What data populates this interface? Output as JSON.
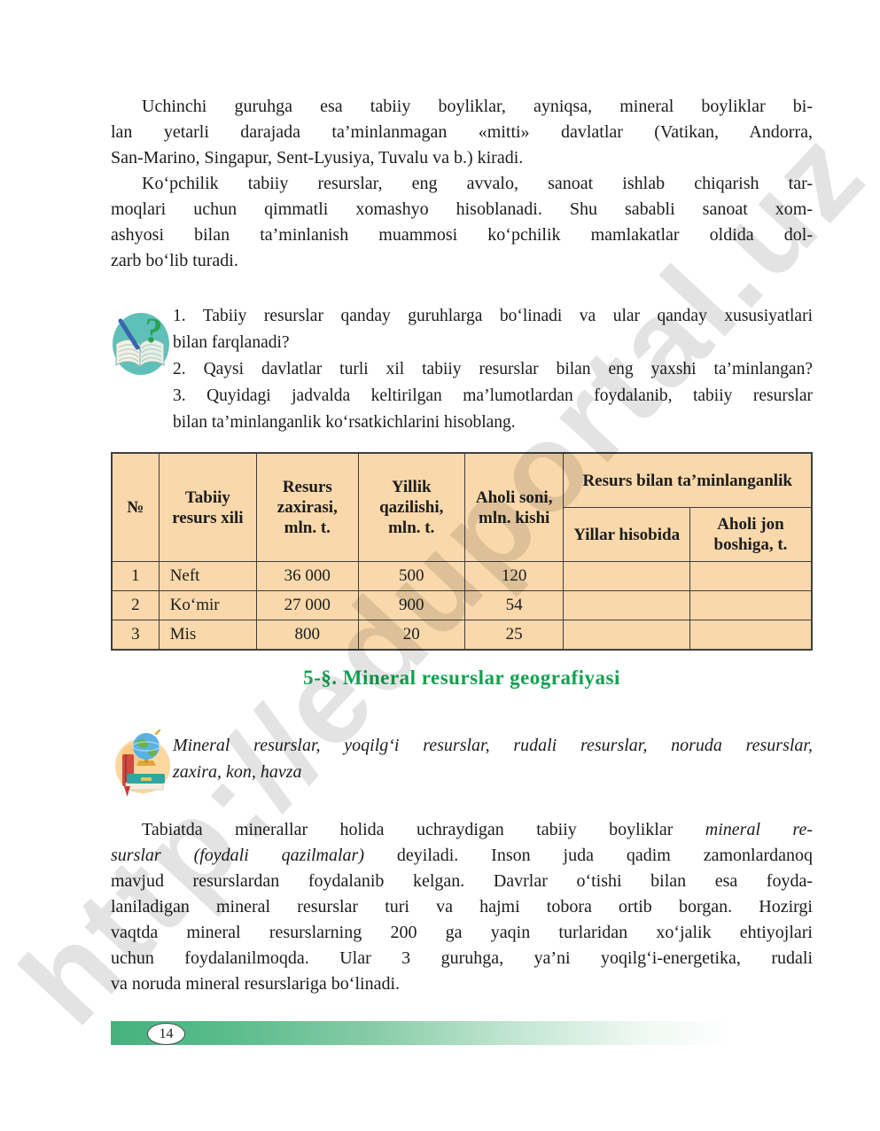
{
  "watermark": {
    "text": "http://eduportal.uz"
  },
  "content": {
    "paragraph_1": {
      "lines": [
        {
          "t": "Uchinchi guruhga esa tabiiy boyliklar, ayniqsa, mineral boyliklar bi-",
          "fill": true
        },
        {
          "t": "lan yetarli darajada ta’minlanmagan «mitti» davlatlar (Vatikan, Andorra,",
          "fill": true
        },
        {
          "t": "San-Marino, Singapur, Sent-Lyusiya, Tuvalu va b.) kiradi.",
          "fill": false
        }
      ]
    },
    "paragraph_2": {
      "lines": [
        {
          "t": "Ko‘pchilik tabiiy resurslar, eng avvalo, sanoat ishlab chiqarish tar-",
          "fill": true
        },
        {
          "t": "moqlari uchun qimmatli xomashyo hisoblanadi. Shu sababli sanoat xom-",
          "fill": true
        },
        {
          "t": "ashyosi bilan ta’minlanish muammosi ko‘pchilik mamlakatlar oldida dol-",
          "fill": true
        },
        {
          "t": "zarb bo‘lib turadi.",
          "fill": false
        }
      ]
    },
    "questions": {
      "icon": "book-question-pen-icon",
      "items": [
        {
          "lines": [
            {
              "t": "1. Tabiiy resurslar qanday guruhlarga bo‘linadi va ular qanday xususiyatlari",
              "fill": true
            },
            {
              "t": "bilan farqlanadi?",
              "fill": false
            }
          ]
        },
        {
          "lines": [
            {
              "t": "2. Qaysi davlatlar turli xil tabiiy resurslar bilan eng yaxshi ta’minlangan?",
              "fill": true
            }
          ]
        },
        {
          "lines": [
            {
              "t": "3. Quyidagi jadvalda keltirilgan ma’lumotlardan foydalanib, tabiiy resurslar",
              "fill": true
            },
            {
              "t": "bilan ta’minlanganlik ko‘rsatkichlarini hisoblang.",
              "fill": false
            }
          ]
        }
      ]
    },
    "table": {
      "headers": {
        "num": "№",
        "kind": "Tabiiy resurs xili",
        "reserve": "Resurs zaxirasi, mln. t.",
        "annual": "Yillik qazilishi, mln. t.",
        "population": "Aholi soni, mln. kishi",
        "supply": "Resurs bilan ta’minlanganlik",
        "years": "Yillar hisobida",
        "percapita": "Aholi jon boshiga, t."
      },
      "rows": [
        {
          "num": "1",
          "kind": "Neft",
          "reserve": "36 000",
          "annual": "500",
          "population": "120",
          "years": "",
          "percapita": ""
        },
        {
          "num": "2",
          "kind": "Ko‘mir",
          "reserve": "27 000",
          "annual": "900",
          "population": "54",
          "years": "",
          "percapita": ""
        },
        {
          "num": "3",
          "kind": "Mis",
          "reserve": "800",
          "annual": "20",
          "population": "25",
          "years": "",
          "percapita": ""
        }
      ]
    },
    "section": {
      "heading": "5-§. Mineral resurslar geografiyasi"
    },
    "vocabulary": {
      "icon": "globe-on-books-icon",
      "lines": [
        {
          "t": "Mineral resurslar, yoqilg‘i resurslar, rudali resurslar, noruda resurslar,",
          "fill": true
        },
        {
          "t": "zaxira, kon, havza",
          "fill": false
        }
      ]
    },
    "paragraph_3": {
      "lines": [
        {
          "seg": [
            {
              "t": "Tabiatda minerallar holida uchraydigan tabiiy boyliklar "
            },
            {
              "t": "mineral re-",
              "i": true
            }
          ],
          "fill": true
        },
        {
          "seg": [
            {
              "t": "surslar (foydali qazilmalar)",
              "i": true
            },
            {
              "t": " deyiladi. Inson juda qadim zamonlardanoq"
            }
          ],
          "fill": true
        },
        {
          "t": "mavjud resurslardan foydalanib kelgan. Davrlar o‘tishi bilan esa foyda-",
          "fill": true
        },
        {
          "t": "laniladigan mineral resurslar turi va hajmi tobora ortib borgan. Hozirgi",
          "fill": true
        },
        {
          "t": "vaqtda mineral resurslarning 200 ga yaqin turlaridan xo‘jalik ehtiyojlari",
          "fill": true
        },
        {
          "t": "uchun foydalanilmoqda. Ular 3 guruhga, ya’ni yoqilg‘i-energetika, rudali",
          "fill": true
        },
        {
          "t": "va noruda mineral resurslariga bo‘linadi.",
          "fill": false
        }
      ]
    }
  },
  "footer": {
    "page_number": "14"
  },
  "colors": {
    "table_bg": "#f9d8ab",
    "table_border": "#3f3f3f",
    "heading_green": "#10a251",
    "footer_green": "#47b17e",
    "watermark_gray": "#c7c7c7",
    "question_icon_teal": "#5fc0ba",
    "vocab_icon_orange": "#fcd7a0"
  }
}
